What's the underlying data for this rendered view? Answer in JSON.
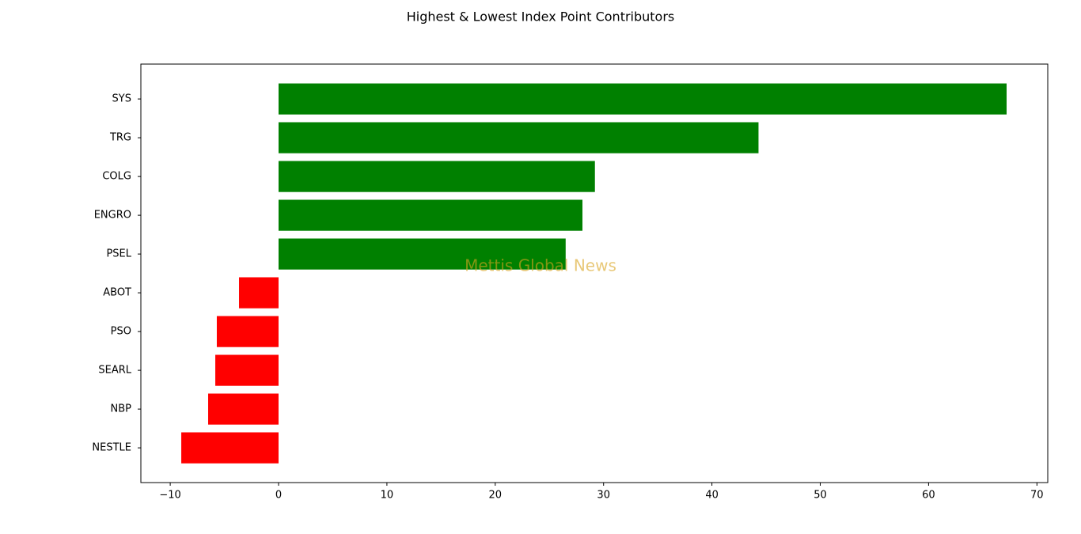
{
  "chart_data": {
    "type": "barh",
    "title": "Highest & Lowest Index Point Contributors",
    "watermark": "Mettis Global News",
    "categories": [
      "SYS",
      "TRG",
      "COLG",
      "ENGRO",
      "PSEL",
      "ABOT",
      "PSO",
      "SEARL",
      "NBP",
      "NESTLE"
    ],
    "values": [
      67.2,
      44.3,
      29.2,
      28.05,
      26.5,
      -3.65,
      -5.7,
      -5.84,
      -6.5,
      -8.98
    ],
    "colors": [
      "#008000",
      "#008000",
      "#008000",
      "#008000",
      "#008000",
      "#ff0000",
      "#ff0000",
      "#ff0000",
      "#ff0000",
      "#ff0000"
    ],
    "xlim": [
      -12.71,
      71.0
    ],
    "xticks": [
      {
        "value": -10,
        "label": "−10"
      },
      0,
      10,
      20,
      30,
      40,
      50,
      60,
      70
    ],
    "grid": false
  }
}
